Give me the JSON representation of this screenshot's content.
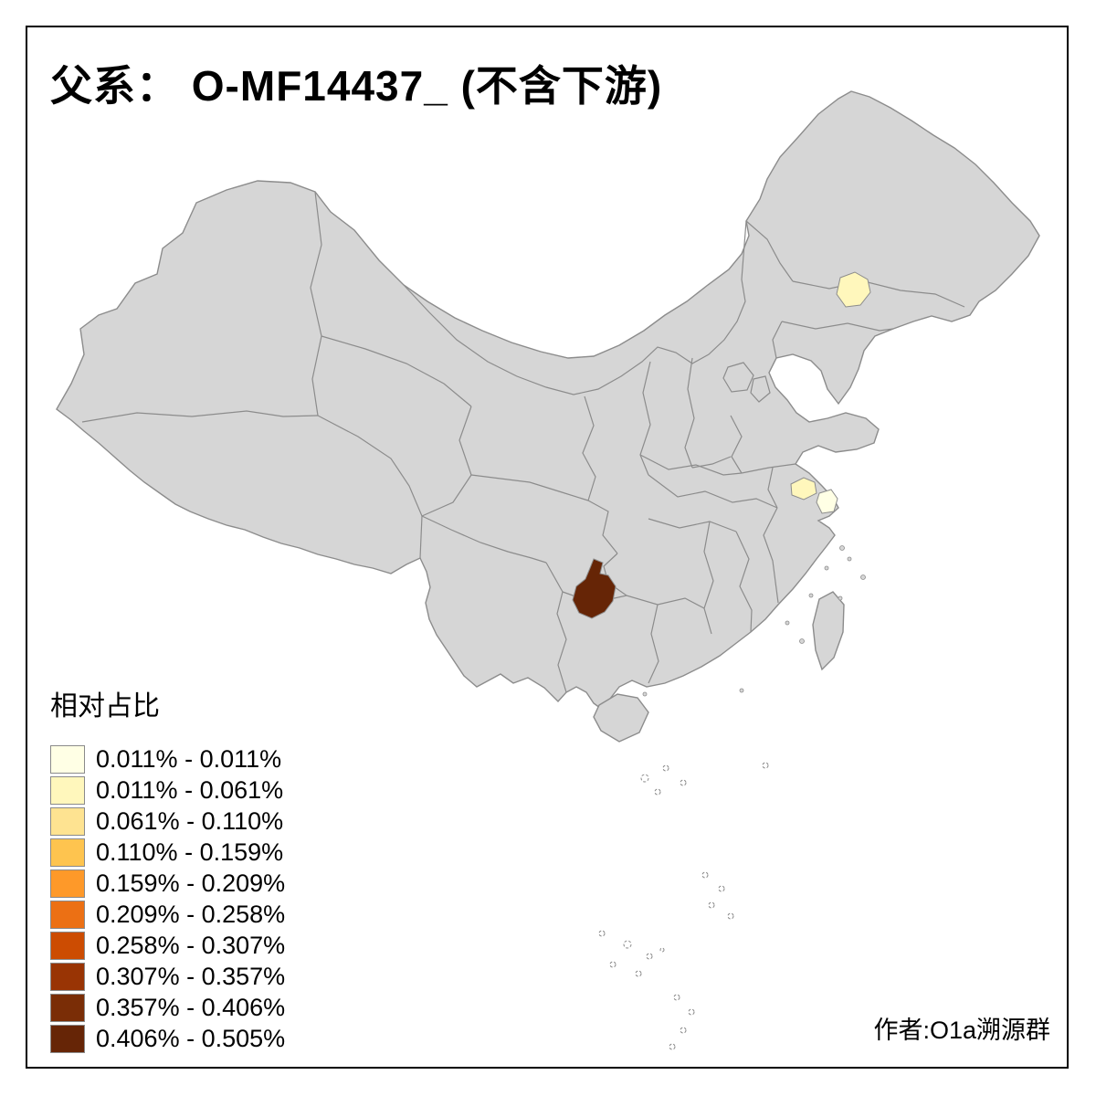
{
  "title": "父系： O-MF14437_ (不含下游)",
  "legend": {
    "title": "相对占比",
    "items": [
      {
        "label": "0.011% - 0.011%",
        "color": "#FFFFE5"
      },
      {
        "label": "0.011% - 0.061%",
        "color": "#FFF7BC"
      },
      {
        "label": "0.061% - 0.110%",
        "color": "#FEE391"
      },
      {
        "label": "0.110% - 0.159%",
        "color": "#FEC44F"
      },
      {
        "label": "0.159% - 0.209%",
        "color": "#FE9929"
      },
      {
        "label": "0.209% - 0.258%",
        "color": "#EC7014"
      },
      {
        "label": "0.258% - 0.307%",
        "color": "#CC4C02"
      },
      {
        "label": "0.307% - 0.357%",
        "color": "#993404"
      },
      {
        "label": "0.357% - 0.406%",
        "color": "#7A2D06"
      },
      {
        "label": "0.406% - 0.505%",
        "color": "#662506"
      }
    ]
  },
  "attribution": "作者:O1a溯源群",
  "map": {
    "land_color": "#D6D6D6",
    "border_color": "#8C8C8C",
    "background": "#FFFFFF",
    "highlights": [
      {
        "id": "highlight-northeast",
        "color": "#FFF7BC"
      },
      {
        "id": "highlight-jiangsu",
        "color": "#FFF7BC"
      },
      {
        "id": "highlight-shanghai",
        "color": "#FFFFE5"
      },
      {
        "id": "highlight-southwest",
        "color": "#662506"
      }
    ]
  }
}
